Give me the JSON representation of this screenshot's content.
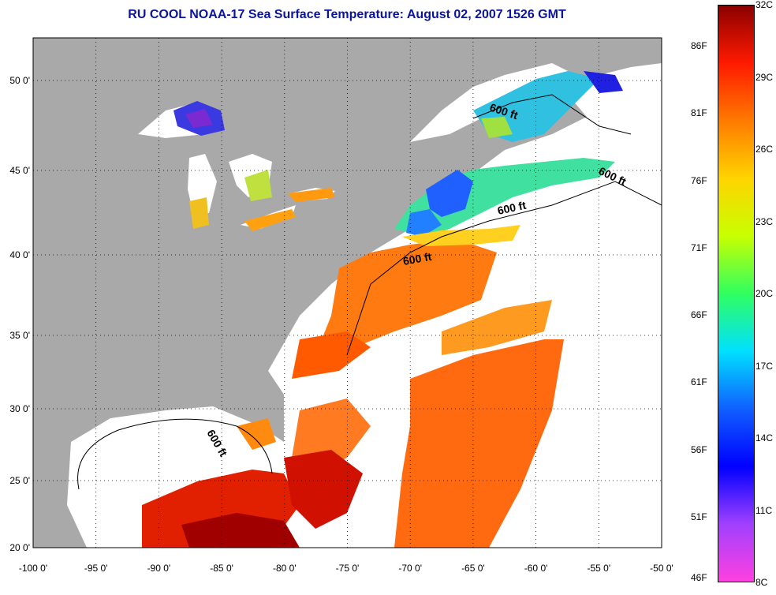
{
  "title": "RU COOL  NOAA-17  Sea Surface Temperature:  August 02, 2007 1526 GMT",
  "map": {
    "lon_ticks": [
      "-100 0'",
      "-95 0'",
      "-90 0'",
      "-85 0'",
      "-80 0'",
      "-75 0'",
      "-70 0'",
      "-65 0'",
      "-60 0'",
      "-55 0'",
      "-50 0'"
    ],
    "lat_ticks": [
      "50 0'",
      "45 0'",
      "40 0'",
      "35 0'",
      "30 0'",
      "25 0'",
      "20 0'"
    ],
    "contour_label": "600 ft",
    "land_color": "#a9a9a9",
    "cloud_color": "#ffffff"
  },
  "colorbar": {
    "celsius": [
      "32C",
      "29C",
      "26C",
      "23C",
      "20C",
      "17C",
      "14C",
      "11C",
      "8C"
    ],
    "fahrenheit": [
      "86F",
      "81F",
      "76F",
      "71F",
      "66F",
      "61F",
      "56F",
      "51F",
      "46F"
    ],
    "colors": [
      "#8b0000",
      "#ff1a00",
      "#ff7a00",
      "#ffd400",
      "#c8ff00",
      "#30ff60",
      "#00e0ff",
      "#1060ff",
      "#0000ff",
      "#a040ff",
      "#ff40e0"
    ]
  }
}
